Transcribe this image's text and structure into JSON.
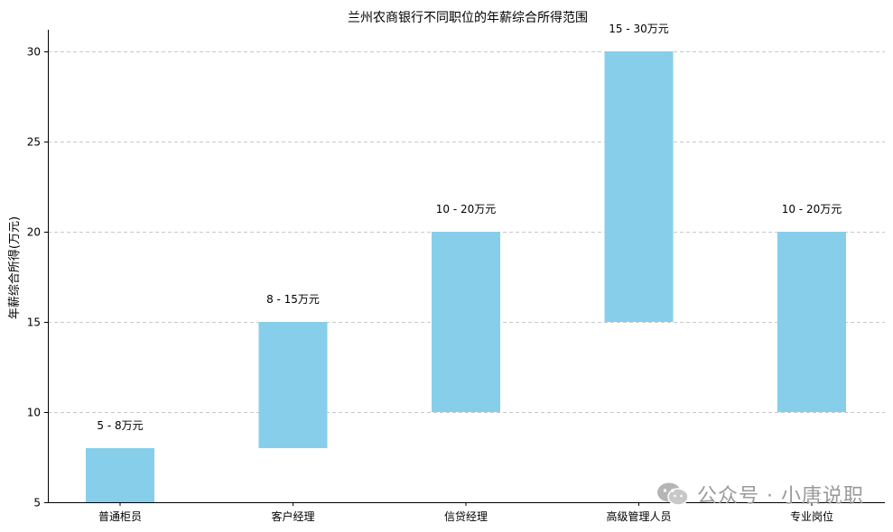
{
  "chart_data": {
    "type": "bar",
    "title": "兰州农商银行不同职位的年薪综合所得范围",
    "xlabel": "",
    "ylabel": "年薪综合所得(万元)",
    "categories": [
      "普通柜员",
      "客户经理",
      "信贷经理",
      "高级管理人员",
      "专业岗位"
    ],
    "ranges": [
      {
        "low": 5,
        "high": 8,
        "label": "5 - 8万元"
      },
      {
        "low": 8,
        "high": 15,
        "label": "8 - 15万元"
      },
      {
        "low": 10,
        "high": 20,
        "label": "10 - 20万元"
      },
      {
        "low": 15,
        "high": 30,
        "label": "15 - 30万元"
      },
      {
        "low": 10,
        "high": 20,
        "label": "10 - 20万元"
      }
    ],
    "ylim": [
      5,
      31.2
    ],
    "yticks": [
      "5",
      "10",
      "15",
      "20",
      "25",
      "30"
    ],
    "grid": true,
    "bar_color": "#87ceeb"
  },
  "watermark": {
    "text": "公众号 · 小唐说职",
    "icon": "wechat-icon"
  }
}
